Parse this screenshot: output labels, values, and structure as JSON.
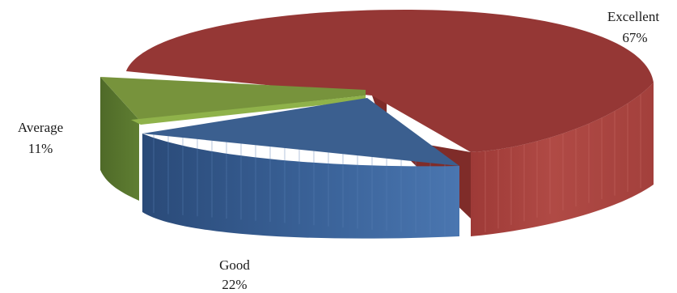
{
  "chart_data": {
    "type": "pie",
    "style": "3d-exploded",
    "title": "",
    "slices": [
      {
        "name": "Excellent",
        "value": 67,
        "label": "67%",
        "color": "#953735"
      },
      {
        "name": "Good",
        "value": 22,
        "label": "22%",
        "color": "#3B5F8F"
      },
      {
        "name": "Average",
        "value": 11,
        "label": "11%",
        "color": "#77933C"
      }
    ],
    "legend": "none"
  }
}
